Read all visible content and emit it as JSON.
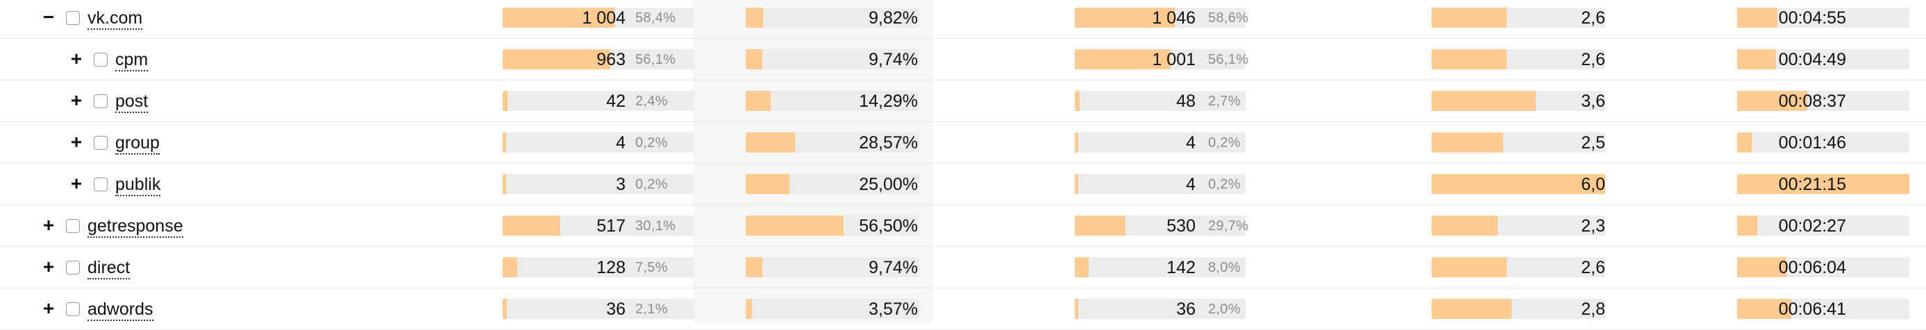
{
  "rows": [
    {
      "toggle": "−",
      "label": "vk.com",
      "level": 0,
      "visits": "1 004",
      "visits_share": "58,4%",
      "visits_frac": 0.584,
      "bounce": "9,82%",
      "bounce_frac": 0.0982,
      "visitors": "1 046",
      "visitors_share": "58,6%",
      "visitors_frac": 0.586,
      "depth": "2,6",
      "depth_frac": 0.43,
      "time": "00:04:55",
      "time_frac": 0.232
    },
    {
      "toggle": "+",
      "label": "cpm",
      "level": 1,
      "visits": "963",
      "visits_share": "56,1%",
      "visits_frac": 0.561,
      "bounce": "9,74%",
      "bounce_frac": 0.0974,
      "visitors": "1 001",
      "visitors_share": "56,1%",
      "visitors_frac": 0.561,
      "depth": "2,6",
      "depth_frac": 0.43,
      "time": "00:04:49",
      "time_frac": 0.227
    },
    {
      "toggle": "+",
      "label": "post",
      "level": 1,
      "visits": "42",
      "visits_share": "2,4%",
      "visits_frac": 0.024,
      "bounce": "14,29%",
      "bounce_frac": 0.1429,
      "visitors": "48",
      "visitors_share": "2,7%",
      "visitors_frac": 0.027,
      "depth": "3,6",
      "depth_frac": 0.6,
      "time": "00:08:37",
      "time_frac": 0.406
    },
    {
      "toggle": "+",
      "label": "group",
      "level": 1,
      "visits": "4",
      "visits_share": "0,2%",
      "visits_frac": 0.002,
      "bounce": "28,57%",
      "bounce_frac": 0.2857,
      "visitors": "4",
      "visitors_share": "0,2%",
      "visitors_frac": 0.002,
      "depth": "2,5",
      "depth_frac": 0.41,
      "time": "00:01:46",
      "time_frac": 0.083
    },
    {
      "toggle": "+",
      "label": "publik",
      "level": 1,
      "visits": "3",
      "visits_share": "0,2%",
      "visits_frac": 0.002,
      "bounce": "25,00%",
      "bounce_frac": 0.25,
      "visitors": "4",
      "visitors_share": "0,2%",
      "visitors_frac": 0.002,
      "depth": "6,0",
      "depth_frac": 1.0,
      "time": "00:21:15",
      "time_frac": 1.0
    },
    {
      "toggle": "+",
      "label": "getresponse",
      "level": 0,
      "visits": "517",
      "visits_share": "30,1%",
      "visits_frac": 0.301,
      "bounce": "56,50%",
      "bounce_frac": 0.565,
      "visitors": "530",
      "visitors_share": "29,7%",
      "visitors_frac": 0.297,
      "depth": "2,3",
      "depth_frac": 0.38,
      "time": "00:02:27",
      "time_frac": 0.115
    },
    {
      "toggle": "+",
      "label": "direct",
      "level": 0,
      "visits": "128",
      "visits_share": "7,5%",
      "visits_frac": 0.075,
      "bounce": "9,74%",
      "bounce_frac": 0.0974,
      "visitors": "142",
      "visitors_share": "8,0%",
      "visitors_frac": 0.08,
      "depth": "2,6",
      "depth_frac": 0.43,
      "time": "00:06:04",
      "time_frac": 0.286
    },
    {
      "toggle": "+",
      "label": "adwords",
      "level": 0,
      "visits": "36",
      "visits_share": "2,1%",
      "visits_frac": 0.021,
      "bounce": "3,57%",
      "bounce_frac": 0.0357,
      "visitors": "36",
      "visitors_share": "2,0%",
      "visitors_frac": 0.02,
      "depth": "2,8",
      "depth_frac": 0.46,
      "time": "00:06:41",
      "time_frac": 0.315
    }
  ]
}
